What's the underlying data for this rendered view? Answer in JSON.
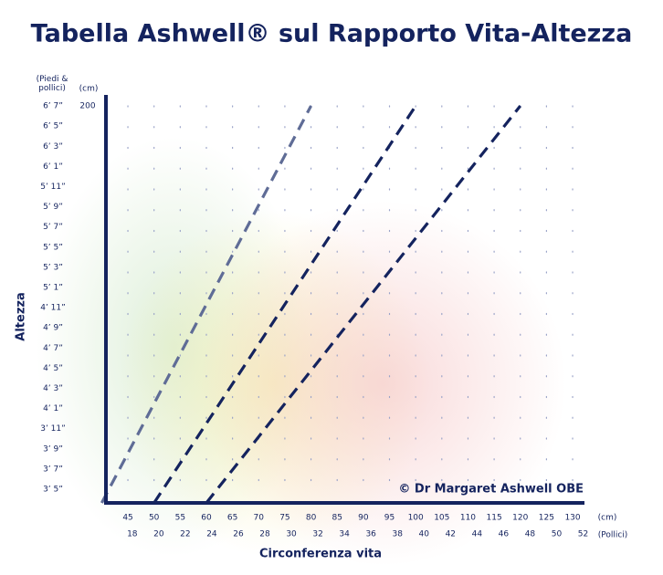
{
  "chart_data": {
    "type": "line",
    "title": "Tabella Ashwell®  sul Rapporto Vita-Altezza",
    "x_label": "Circonferenza vita",
    "y_label": "Altezza",
    "y_unit_label": "(Piedi & pollici)",
    "y2_unit_label": "(cm)",
    "x_unit_label": "(cm)",
    "x2_unit_label": "(Pollici)",
    "annotation": "© Dr Margaret Ashwell OBE",
    "xlim": [
      40,
      132
    ],
    "xticks": [
      45,
      50,
      55,
      60,
      65,
      70,
      75,
      80,
      85,
      90,
      95,
      100,
      105,
      110,
      115,
      120,
      125,
      130
    ],
    "x2lim": [
      15.7,
      52
    ],
    "x2ticks": [
      18,
      20,
      22,
      24,
      26,
      28,
      30,
      32,
      34,
      36,
      38,
      40,
      42,
      44,
      46,
      48,
      50,
      52
    ],
    "ylim": [
      100,
      200
    ],
    "yticks": [
      {
        "value": 200.66,
        "label": "6’ 7”"
      },
      {
        "value": 195.58,
        "label": "6’ 5”"
      },
      {
        "value": 190.5,
        "label": "6’ 3”"
      },
      {
        "value": 185.42,
        "label": "6’ 1”"
      },
      {
        "value": 180.34,
        "label": "5’ 11”"
      },
      {
        "value": 175.26,
        "label": "5’ 9”"
      },
      {
        "value": 170.18,
        "label": "5’ 7”"
      },
      {
        "value": 165.1,
        "label": "5’ 5”"
      },
      {
        "value": 160.02,
        "label": "5’ 3”"
      },
      {
        "value": 154.94,
        "label": "5’ 1”"
      },
      {
        "value": 149.86,
        "label": "4’ 11”"
      },
      {
        "value": 144.78,
        "label": "4’ 9”"
      },
      {
        "value": 139.7,
        "label": "4’ 7”"
      },
      {
        "value": 134.62,
        "label": "4’ 5”"
      },
      {
        "value": 129.54,
        "label": "4’ 3”"
      },
      {
        "value": 124.46,
        "label": "4’ 1”"
      },
      {
        "value": 119.38,
        "label": "3’ 11”"
      },
      {
        "value": 114.3,
        "label": "3’ 9”"
      },
      {
        "value": 109.22,
        "label": "3’ 7”"
      },
      {
        "value": 104.14,
        "label": "3’ 5”"
      }
    ],
    "y2lim": [
      100,
      200
    ],
    "y2ticks": [
      200
    ],
    "grid": true,
    "series": [
      {
        "color": "#5f6c96",
        "x": [
          40,
          80
        ],
        "y": [
          100,
          200
        ]
      },
      {
        "color": "#14235e",
        "x": [
          50,
          100
        ],
        "y": [
          100,
          200
        ]
      },
      {
        "color": "#14235e",
        "x": [
          60,
          120
        ],
        "y": [
          100,
          200
        ]
      }
    ]
  }
}
